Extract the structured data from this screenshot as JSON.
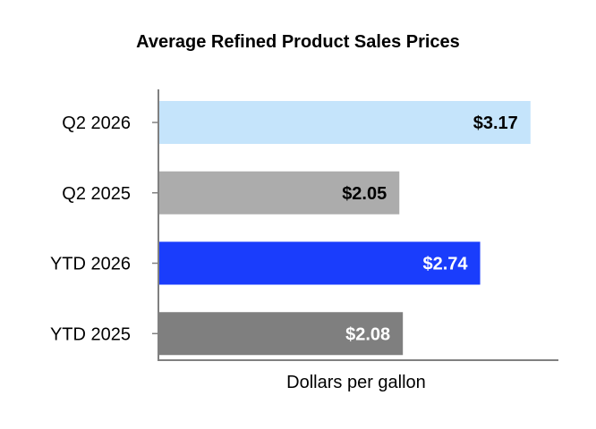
{
  "chart_data": {
    "type": "bar",
    "orientation": "horizontal",
    "title": "Average Refined Product Sales Prices",
    "xlabel": "Dollars per gallon",
    "ylabel": "",
    "xlim": [
      0,
      3.5
    ],
    "grid": false,
    "legend": "none",
    "categories": [
      "Q2 2026",
      "Q2 2025",
      "YTD 2026",
      "YTD 2025"
    ],
    "values": [
      3.17,
      2.05,
      2.74,
      2.08
    ],
    "value_labels": [
      "$3.17",
      "$2.05",
      "$2.74",
      "$2.08"
    ],
    "bar_colors": [
      "#c5e4fb",
      "#acacac",
      "#1a3dfc",
      "#7f7f7f"
    ],
    "label_colors": [
      "#000000",
      "#000000",
      "#ffffff",
      "#ffffff"
    ]
  }
}
